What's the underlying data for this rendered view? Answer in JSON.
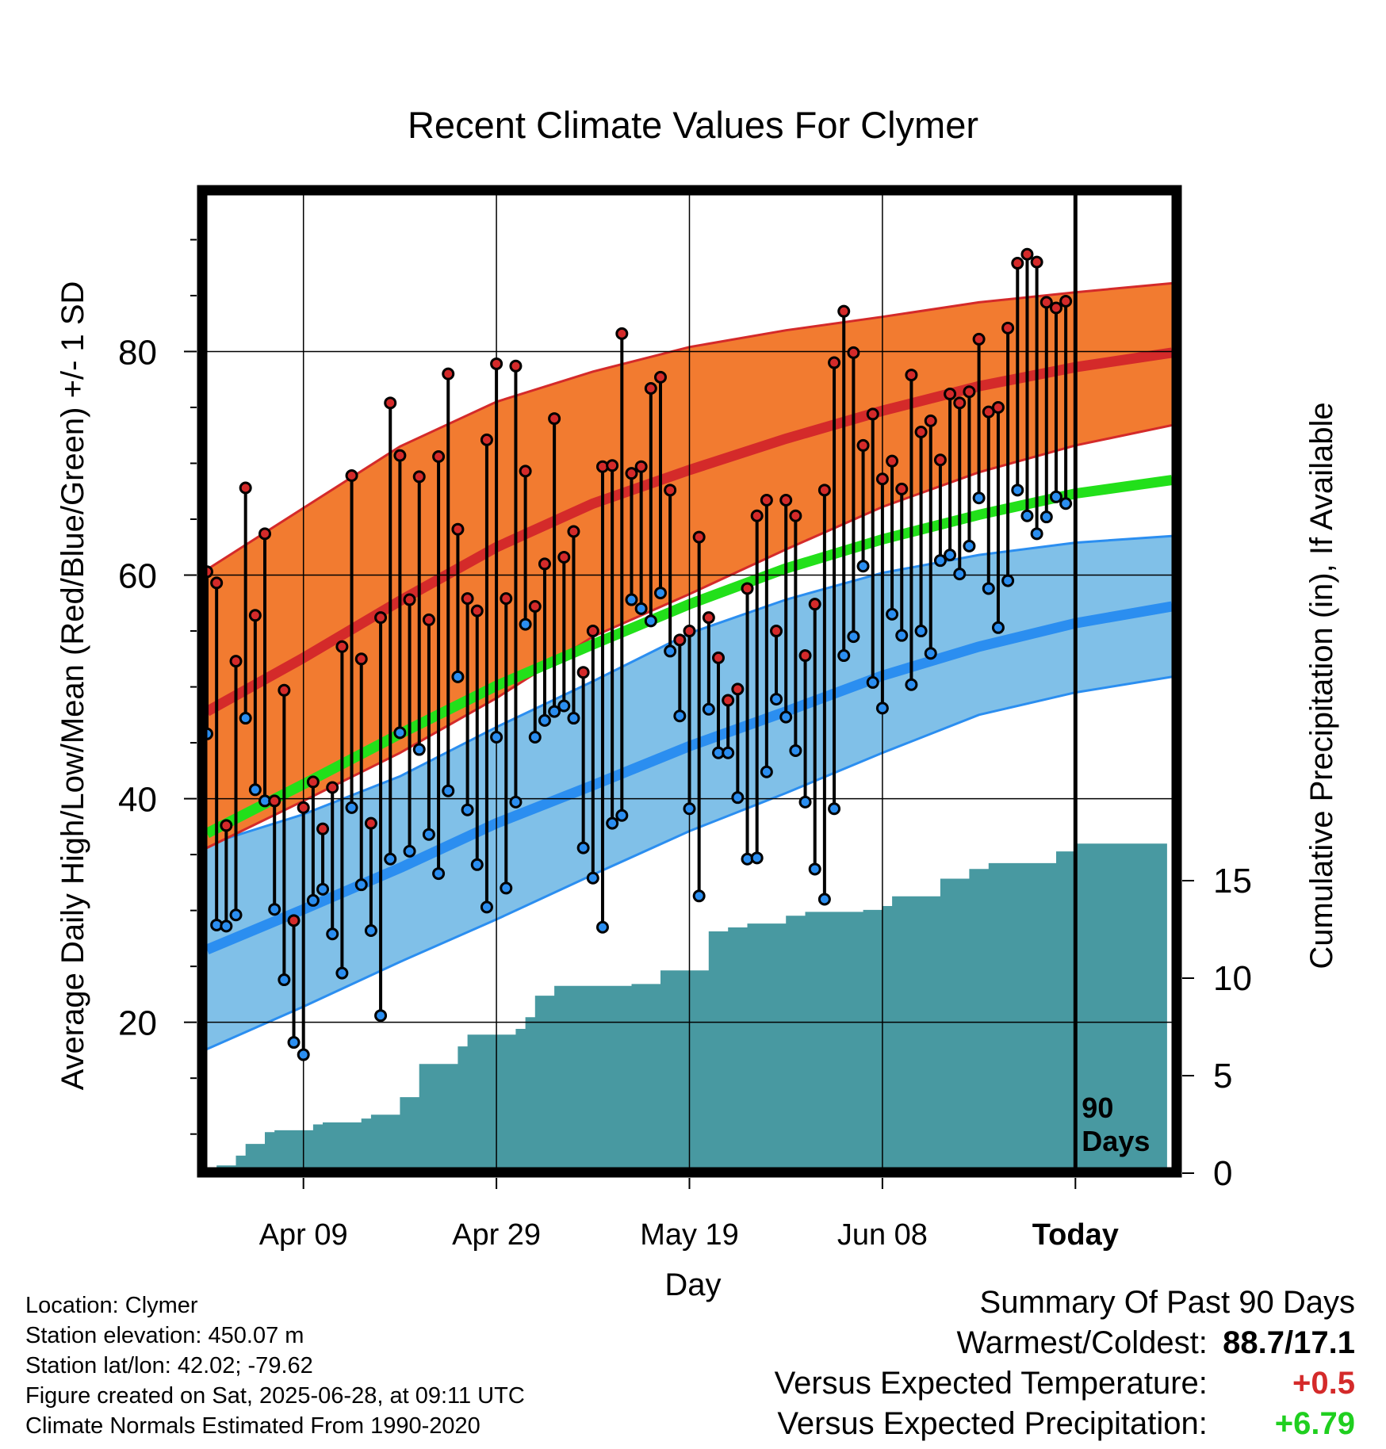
{
  "chart_data": {
    "type": "line",
    "title": "Recent Climate Values For Clymer",
    "xlabel": "Day",
    "ylabel": "Average Daily High/Low/Mean (Red/Blue/Green) +/- 1 SD",
    "y2label": "Cumulative Precipitation (in), If Available",
    "x_tick_labels": [
      "Apr 09",
      "Apr 29",
      "May 19",
      "Jun 08",
      "Today"
    ],
    "x_tick_days": [
      10,
      30,
      50,
      70,
      90
    ],
    "xlim": [
      0,
      100
    ],
    "ylim": [
      7,
      94
    ],
    "y_ticks": [
      20,
      40,
      60,
      80
    ],
    "y2lim": [
      0,
      50
    ],
    "y2_ticks": [
      0,
      5,
      10,
      15
    ],
    "today_label": "90\nDays",
    "grid": true,
    "colors": {
      "high_band": "#f27b30",
      "high_mean": "#d42a2a",
      "low_band": "#80c0e8",
      "low_mean": "#2b8ef0",
      "mean_line": "#22e01a",
      "precip": "#4899a1",
      "high_dot": "#d42a2a",
      "low_dot": "#2b8ef0"
    },
    "normals": {
      "days": [
        0,
        10,
        20,
        30,
        40,
        50,
        60,
        70,
        80,
        90,
        100
      ],
      "high_mean": [
        47.8,
        52.6,
        57.7,
        62.5,
        66.4,
        69.4,
        72.2,
        74.7,
        76.9,
        78.6,
        79.9
      ],
      "high_sd_upper": [
        60.5,
        66,
        71.5,
        75.5,
        78.2,
        80.4,
        81.9,
        83.1,
        84.4,
        85.3,
        86.1
      ],
      "high_sd_lower": [
        35.6,
        39.8,
        44.1,
        49,
        54.5,
        58.3,
        62.3,
        66.1,
        69.2,
        71.6,
        73.4
      ],
      "mean": [
        36.9,
        41.3,
        45.8,
        50.1,
        53.8,
        57.4,
        60.6,
        63.2,
        65.4,
        67.3,
        68.5
      ],
      "low_mean": [
        26.5,
        30.1,
        33.8,
        37.8,
        41.2,
        44.7,
        47.8,
        51,
        53.6,
        55.7,
        57.2
      ],
      "low_sd_upper": [
        35.9,
        38.6,
        42,
        46.4,
        50.5,
        54.8,
        57.8,
        60.2,
        61.8,
        62.9,
        63.5
      ],
      "low_sd_lower": [
        17.6,
        21.4,
        25.4,
        29.2,
        33.2,
        37.1,
        40.5,
        44.1,
        47.5,
        49.5,
        50.9
      ]
    },
    "series": [
      {
        "name": "High",
        "values": [
          60.3,
          59.3,
          37.6,
          52.3,
          67.8,
          56.4,
          63.7,
          39.8,
          49.7,
          29.1,
          39.2,
          41.5,
          37.3,
          41,
          53.6,
          68.9,
          52.5,
          37.8,
          56.2,
          75.4,
          70.7,
          57.8,
          68.8,
          56,
          70.6,
          78,
          64.1,
          57.9,
          56.8,
          72.1,
          78.9,
          57.9,
          78.7,
          69.3,
          57.2,
          61,
          74,
          61.6,
          63.9,
          51.3,
          55,
          69.7,
          69.8,
          81.6,
          69.1,
          69.7,
          76.7,
          77.7,
          67.6,
          54.2,
          55,
          63.4,
          56.2,
          52.6,
          48.8,
          49.8,
          58.8,
          65.3,
          66.7,
          55,
          66.7,
          65.3,
          52.8,
          57.4,
          67.6,
          79,
          83.6,
          79.9,
          71.6,
          74.4,
          68.6,
          70.2,
          67.7,
          77.9,
          72.8,
          73.8,
          70.3,
          76.2,
          75.4,
          76.4,
          81.1,
          74.6,
          75,
          82.1,
          87.9,
          88.7,
          88,
          84.4,
          83.9,
          84.5
        ]
      },
      {
        "name": "Low",
        "values": [
          45.8,
          28.7,
          28.6,
          29.6,
          47.2,
          40.8,
          39.8,
          30.1,
          23.8,
          18.2,
          17.1,
          30.9,
          31.9,
          27.9,
          24.4,
          39.2,
          32.3,
          28.2,
          20.6,
          34.6,
          45.9,
          35.3,
          44.4,
          36.8,
          33.3,
          40.7,
          50.9,
          39,
          34.1,
          30.3,
          45.5,
          32,
          39.7,
          55.6,
          45.5,
          47,
          47.8,
          48.3,
          47.2,
          35.6,
          32.9,
          28.5,
          37.8,
          38.5,
          57.8,
          57,
          55.9,
          58.4,
          53.2,
          47.4,
          39.1,
          31.3,
          48,
          44.1,
          44.1,
          40.1,
          34.6,
          34.7,
          42.4,
          48.9,
          47.3,
          44.3,
          39.7,
          33.7,
          31,
          39.1,
          52.8,
          54.5,
          60.8,
          50.4,
          48.1,
          56.5,
          54.6,
          50.2,
          55,
          53,
          61.3,
          61.8,
          60.1,
          62.6,
          66.9,
          58.8,
          55.3,
          59.5,
          67.6,
          65.3,
          63.7,
          65.2,
          67,
          66.4
        ]
      }
    ],
    "precip_cumulative": {
      "days": [
        0,
        1,
        2,
        3,
        4,
        5,
        6,
        7,
        8,
        9,
        10,
        11,
        12,
        13,
        14,
        15,
        16,
        17,
        18,
        19,
        20,
        21,
        22,
        23,
        24,
        25,
        26,
        27,
        28,
        29,
        30,
        31,
        32,
        33,
        34,
        35,
        36,
        37,
        38,
        39,
        40,
        41,
        42,
        43,
        44,
        45,
        46,
        47,
        48,
        49,
        50,
        51,
        52,
        53,
        54,
        55,
        56,
        57,
        58,
        59,
        60,
        61,
        62,
        63,
        64,
        65,
        66,
        67,
        68,
        69,
        70,
        71,
        72,
        73,
        74,
        75,
        76,
        77,
        78,
        79,
        80,
        81,
        82,
        83,
        84,
        85,
        86,
        87,
        88,
        89,
        90,
        99.5
      ],
      "values": [
        0.3,
        0.4,
        0.4,
        0.9,
        1.5,
        1.5,
        2.1,
        2.2,
        2.2,
        2.2,
        2.2,
        2.5,
        2.6,
        2.6,
        2.6,
        2.6,
        2.8,
        3,
        3,
        3,
        3.9,
        3.9,
        5.6,
        5.6,
        5.6,
        5.6,
        6.5,
        7.1,
        7.1,
        7.1,
        7.1,
        7.1,
        7.4,
        8,
        9.1,
        9.1,
        9.6,
        9.6,
        9.6,
        9.6,
        9.6,
        9.6,
        9.6,
        9.6,
        9.7,
        9.7,
        9.7,
        10.4,
        10.4,
        10.4,
        10.4,
        10.4,
        12.4,
        12.4,
        12.6,
        12.6,
        12.8,
        12.8,
        12.8,
        12.8,
        13.2,
        13.2,
        13.4,
        13.4,
        13.4,
        13.4,
        13.4,
        13.4,
        13.5,
        13.5,
        13.7,
        14.2,
        14.2,
        14.2,
        14.2,
        14.2,
        15.1,
        15.1,
        15.1,
        15.6,
        15.6,
        15.9,
        15.9,
        15.9,
        15.9,
        15.9,
        15.9,
        15.9,
        16.5,
        16.5,
        16.9,
        16.9
      ]
    }
  },
  "footer": {
    "location": "Location: Clymer",
    "elevation": "Station elevation: 450.07 m",
    "latlon": "Station lat/lon: 42.02; -79.62",
    "created": "Figure created on Sat, 2025-06-28, at 09:11 UTC",
    "normals": "Climate Normals Estimated From 1990-2020"
  },
  "summary": {
    "heading": "Summary Of Past 90 Days",
    "warmest_label": "Warmest/Coldest:",
    "warmest_value": "88.7/17.1",
    "temp_label": "Versus Expected Temperature:",
    "temp_value": "+0.5",
    "precip_label": "Versus Expected Precipitation:",
    "precip_value": "+6.79"
  }
}
